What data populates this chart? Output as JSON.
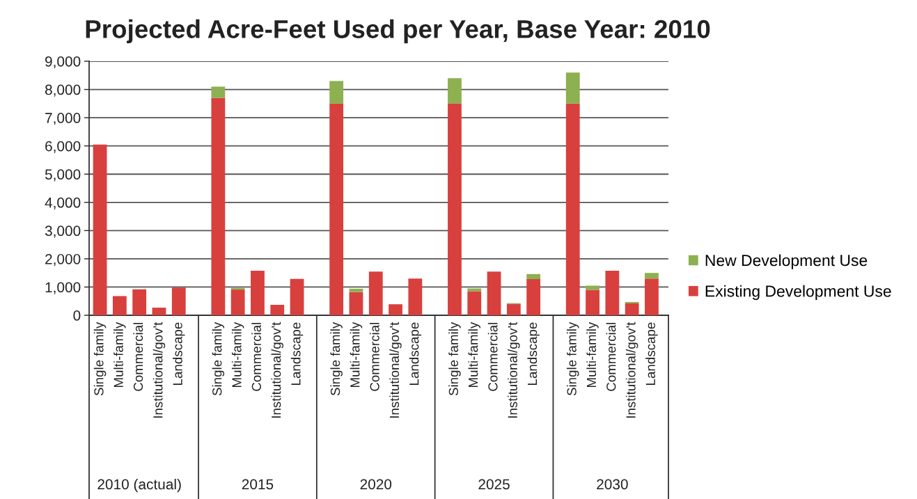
{
  "chart_data": {
    "type": "bar",
    "title": "Projected Acre-Feet Used per Year, Base Year: 2010",
    "categories": [
      "Single family",
      "Multi-family",
      "Commercial",
      "Institutional/gov't",
      "Landscape",
      null,
      "Single family",
      "Multi-family",
      "Commercial",
      "Institutional/gov't",
      "Landscape",
      null,
      "Single family",
      "Multi-family",
      "Commercial",
      "Institutional/gov't",
      "Landscape",
      null,
      "Single family",
      "Multi-family",
      "Commercial",
      "Institutional/gov't",
      "Landscape",
      null,
      "Single family",
      "Multi-family",
      "Commercial",
      "Institutional/gov't",
      "Landscape"
    ],
    "stacked": true,
    "series": [
      {
        "name": "Existing Development Use",
        "color": "#d8403e",
        "values": [
          6050,
          680,
          920,
          270,
          980,
          null,
          7700,
          910,
          1580,
          370,
          1290,
          null,
          7500,
          820,
          1550,
          390,
          1300,
          null,
          7500,
          850,
          1550,
          400,
          1280,
          null,
          7500,
          900,
          1580,
          420,
          1300
        ]
      },
      {
        "name": "New Development Use",
        "color": "#8db050",
        "values": [
          null,
          null,
          null,
          null,
          null,
          null,
          400,
          60,
          null,
          null,
          null,
          null,
          800,
          120,
          null,
          null,
          null,
          null,
          900,
          100,
          null,
          30,
          180,
          null,
          1100,
          150,
          null,
          50,
          200
        ]
      }
    ],
    "ylim": [
      0,
      9000
    ],
    "yticks": [
      0,
      {
        "value": 1000,
        "label": "1,000"
      },
      {
        "value": 2000,
        "label": "2,000"
      },
      {
        "value": 3000,
        "label": "3,000"
      },
      {
        "value": 4000,
        "label": "4,000"
      },
      {
        "value": 5000,
        "label": "5,000"
      },
      {
        "value": 6000,
        "label": "6,000"
      },
      {
        "value": 7000,
        "label": "7,000"
      },
      {
        "value": 8000,
        "label": "8,000"
      },
      {
        "value": 9000,
        "label": "9,000"
      }
    ],
    "grid": "y",
    "legend": "right",
    "annotations": [
      "2010 (actual)",
      "2015",
      "2020",
      "2025",
      "2030"
    ]
  }
}
